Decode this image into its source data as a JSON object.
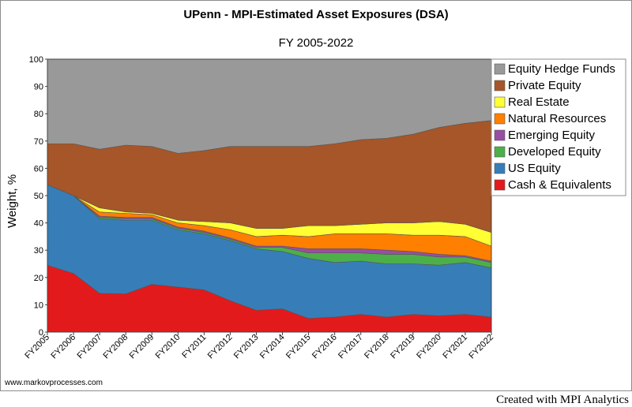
{
  "chart_data": {
    "type": "area",
    "stacked": true,
    "title": "UPenn - MPI-Estimated Asset Exposures (DSA)",
    "subtitle": "FY 2005-2022",
    "ylabel": "Weight, %",
    "ylim": [
      0,
      100
    ],
    "yticks": [
      0,
      10,
      20,
      30,
      40,
      50,
      60,
      70,
      80,
      90,
      100
    ],
    "categories": [
      "FY2005",
      "FY2006",
      "FY2007",
      "FY2008",
      "FY2009",
      "FY2010",
      "FY2011",
      "FY2012",
      "FY2013",
      "FY2014",
      "FY2015",
      "FY2016",
      "FY2017",
      "FY2018",
      "FY2019",
      "FY2020",
      "FY2021",
      "FY2022"
    ],
    "legend_position": "right",
    "series": [
      {
        "name": "Cash & Equivalents",
        "color": "#e31a1c",
        "values": [
          24.5,
          21.5,
          14.2,
          14.0,
          17.5,
          16.5,
          15.5,
          11.5,
          8.0,
          8.5,
          5.0,
          5.5,
          6.5,
          5.5,
          6.5,
          6.0,
          6.5,
          5.5
        ]
      },
      {
        "name": "US Equity",
        "color": "#377eb8",
        "values": [
          29.5,
          28.5,
          27.3,
          27.0,
          23.5,
          21.0,
          20.5,
          22.0,
          22.5,
          21.0,
          22.0,
          20.0,
          19.5,
          19.5,
          18.5,
          18.5,
          19.0,
          18.0
        ]
      },
      {
        "name": "Developed Equity",
        "color": "#4daf4a",
        "values": [
          0.0,
          0.0,
          0.5,
          0.5,
          0.5,
          0.5,
          0.5,
          0.5,
          0.5,
          1.5,
          2.0,
          3.5,
          3.0,
          3.5,
          3.5,
          3.0,
          2.0,
          2.0
        ]
      },
      {
        "name": "Emerging Equity",
        "color": "#984ea3",
        "values": [
          0.0,
          0.0,
          0.5,
          0.5,
          0.5,
          0.5,
          0.5,
          0.5,
          0.5,
          0.5,
          1.5,
          1.5,
          1.5,
          1.5,
          1.0,
          1.0,
          0.5,
          0.5
        ]
      },
      {
        "name": "Natural Resources",
        "color": "#ff7f00",
        "values": [
          0.0,
          0.0,
          1.5,
          1.5,
          1.0,
          1.5,
          2.0,
          3.0,
          3.5,
          4.0,
          4.5,
          5.5,
          5.5,
          6.0,
          6.0,
          7.0,
          7.0,
          5.5
        ]
      },
      {
        "name": "Real Estate",
        "color": "#ffff33",
        "values": [
          0.0,
          0.0,
          1.5,
          0.5,
          0.5,
          1.0,
          1.5,
          2.5,
          3.0,
          2.5,
          4.0,
          3.0,
          3.5,
          4.0,
          4.5,
          5.0,
          4.5,
          5.0
        ]
      },
      {
        "name": "Private Equity",
        "color": "#a65628",
        "values": [
          15.0,
          19.0,
          21.5,
          24.5,
          24.5,
          24.5,
          26.0,
          28.0,
          30.0,
          30.0,
          29.0,
          30.0,
          31.0,
          31.0,
          32.5,
          34.5,
          37.0,
          41.0
        ]
      },
      {
        "name": "Equity Hedge Funds",
        "color": "#999999",
        "values": [
          31.0,
          31.0,
          33.0,
          31.5,
          32.0,
          34.5,
          33.5,
          32.0,
          32.0,
          32.0,
          32.0,
          31.0,
          29.5,
          29.0,
          27.5,
          25.0,
          23.5,
          22.5
        ]
      }
    ],
    "legend_order": [
      "Equity Hedge Funds",
      "Private Equity",
      "Real Estate",
      "Natural Resources",
      "Emerging Equity",
      "Developed Equity",
      "US Equity",
      "Cash & Equivalents"
    ]
  },
  "footer": {
    "website": "www.markovprocesses.com",
    "credit": "Created with MPI Analytics"
  }
}
